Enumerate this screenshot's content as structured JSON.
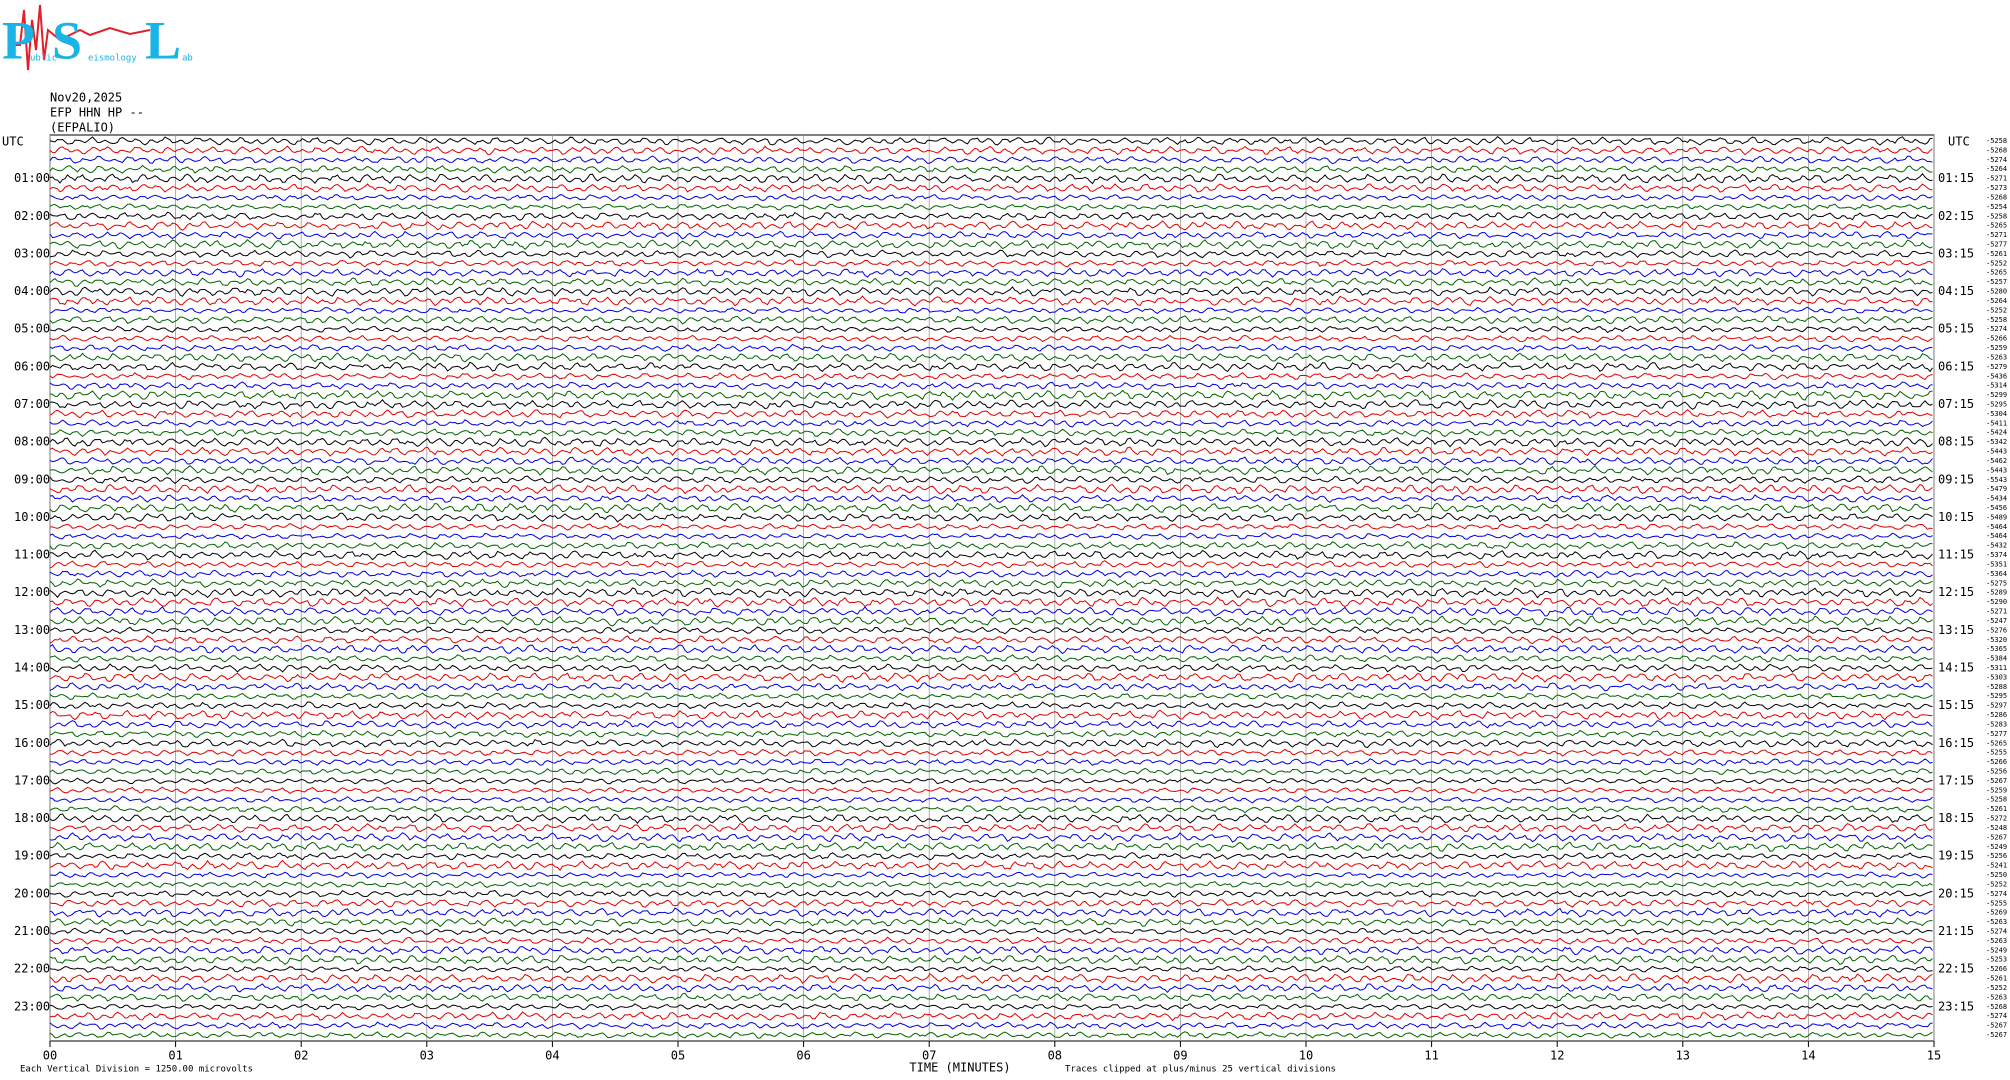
{
  "chart_data": {
    "type": "helicorder",
    "logo": {
      "letters": [
        "P",
        "S",
        "L"
      ],
      "small": [
        "ublic",
        "eismology",
        "ab"
      ]
    },
    "date": "Nov20,2025",
    "station": "EFP HHN HP --",
    "site": "(EFPALIO)",
    "left_axis_label": "UTC",
    "right_axis_label": "UTC",
    "left_labels": [
      "01:00",
      "02:00",
      "03:00",
      "04:00",
      "05:00",
      "06:00",
      "07:00",
      "08:00",
      "09:00",
      "10:00",
      "11:00",
      "12:00",
      "13:00",
      "14:00",
      "15:00",
      "16:00",
      "17:00",
      "18:00",
      "19:00",
      "20:00",
      "21:00",
      "22:00",
      "23:00"
    ],
    "right_labels": [
      "01:15",
      "02:15",
      "03:15",
      "04:15",
      "05:15",
      "06:15",
      "07:15",
      "08:15",
      "09:15",
      "10:15",
      "11:15",
      "12:15",
      "13:15",
      "14:15",
      "15:15",
      "16:15",
      "17:15",
      "18:15",
      "19:15",
      "20:15",
      "21:15",
      "22:15",
      "23:15"
    ],
    "trace_offsets": [
      -5258,
      -5268,
      -5274,
      -5264,
      -5271,
      -5273,
      -5268,
      -5254,
      -5258,
      -5265,
      -5271,
      -5277,
      -5261,
      -5252,
      -5265,
      -5257,
      -5280,
      -5264,
      -5252,
      -5258,
      -5274,
      -5266,
      -5259,
      -5263,
      -5279,
      -5436,
      -5314,
      -5299,
      -5295,
      -5304,
      -5411,
      -5424,
      -5342,
      -5443,
      -5462,
      -5443,
      -5543,
      -5479,
      -5434,
      -5456,
      -5489,
      -5464,
      -5464,
      -5432,
      -5374,
      -5351,
      -5364,
      -5275,
      -5289,
      -5290,
      -5271,
      -5247,
      -5276,
      -5320,
      -5365,
      -5384,
      -5311,
      -5303,
      -5288,
      -5295,
      -5297,
      -5286,
      -5283,
      -5277,
      -5265,
      -5255,
      -5266,
      -5256,
      -5267,
      -5259,
      -5258,
      -5261,
      -5272,
      -5248,
      -5267,
      -5249,
      -5256,
      -5241,
      -5250,
      -5252,
      -5274,
      -5255,
      -5269,
      -5263,
      -5274,
      -5263,
      -5249,
      -5253,
      -5266,
      -5261,
      -5252,
      -5263,
      -5268,
      -5274,
      -5267,
      -5267
    ],
    "trace_colors": [
      "#000000",
      "#e00000",
      "#0000e0",
      "#006400"
    ],
    "xlabel": "TIME (MINUTES)",
    "clip_note": "Traces clipped at plus/minus 25 vertical divisions",
    "scale_note": "Each Vertical Division = 1250.00 microvolts",
    "xlim": [
      0,
      15
    ],
    "xticks": [
      {
        "value": 0,
        "label": "00"
      },
      {
        "value": 1,
        "label": "01"
      },
      {
        "value": 2,
        "label": "02"
      },
      {
        "value": 3,
        "label": "03"
      },
      {
        "value": 4,
        "label": "04"
      },
      {
        "value": 5,
        "label": "05"
      },
      {
        "value": 6,
        "label": "06"
      },
      {
        "value": 7,
        "label": "07"
      },
      {
        "value": 8,
        "label": "08"
      },
      {
        "value": 9,
        "label": "09"
      },
      {
        "value": 10,
        "label": "10"
      },
      {
        "value": 11,
        "label": "11"
      },
      {
        "value": 12,
        "label": "12"
      },
      {
        "value": 13,
        "label": "13"
      },
      {
        "value": 14,
        "label": "14"
      },
      {
        "value": 15,
        "label": "15"
      }
    ],
    "grid": true
  }
}
